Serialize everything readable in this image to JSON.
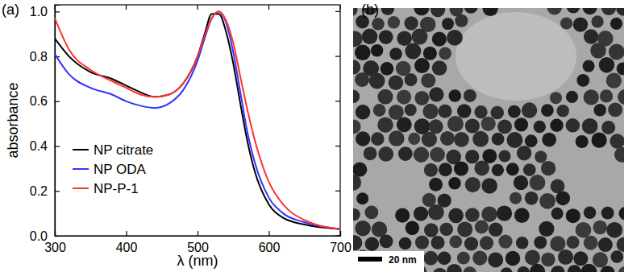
{
  "chart_data": {
    "type": "line",
    "title": "(a)",
    "x_label": "λ (nm)",
    "y_label": "absorbance",
    "x": [
      300,
      320,
      350,
      380,
      400,
      420,
      440,
      460,
      480,
      500,
      510,
      520,
      530,
      540,
      550,
      560,
      570,
      580,
      600,
      620,
      650,
      700
    ],
    "series": [
      {
        "name": "NP citrate",
        "color": "#000000",
        "values": [
          0.88,
          0.8,
          0.73,
          0.7,
          0.67,
          0.64,
          0.62,
          0.63,
          0.68,
          0.8,
          0.9,
          0.99,
          0.99,
          0.91,
          0.77,
          0.59,
          0.42,
          0.29,
          0.14,
          0.08,
          0.05,
          0.03
        ]
      },
      {
        "name": "NP ODA",
        "color": "#3333ff",
        "values": [
          0.81,
          0.72,
          0.66,
          0.63,
          0.6,
          0.58,
          0.57,
          0.59,
          0.65,
          0.78,
          0.88,
          0.97,
          1.0,
          0.95,
          0.82,
          0.64,
          0.46,
          0.33,
          0.17,
          0.1,
          0.06,
          0.03
        ]
      },
      {
        "name": "NP-P-1",
        "color": "#ff3333",
        "values": [
          0.97,
          0.83,
          0.74,
          0.69,
          0.66,
          0.63,
          0.62,
          0.63,
          0.68,
          0.8,
          0.89,
          0.97,
          1.0,
          0.96,
          0.86,
          0.71,
          0.56,
          0.43,
          0.24,
          0.14,
          0.07,
          0.03
        ]
      }
    ],
    "xlim": [
      300,
      700
    ],
    "xticks": [
      300,
      400,
      500,
      600,
      700
    ],
    "ylim": [
      0,
      1.03
    ],
    "yticks": [
      {
        "value": 0,
        "label": "0.0"
      },
      0.2,
      0.4,
      0.6,
      0.8,
      {
        "value": 1,
        "label": "1.0"
      }
    ],
    "legend": "lower left",
    "grid": false
  },
  "image": {
    "label": "(b)",
    "scale_bar": "20 nm"
  }
}
